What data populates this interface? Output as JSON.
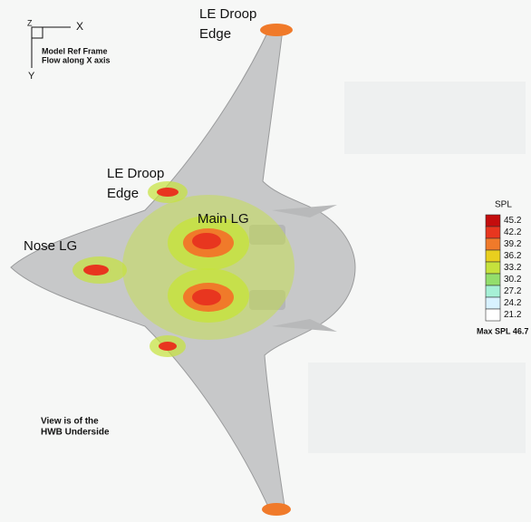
{
  "frame": {
    "x_label": "X",
    "y_label": "Y",
    "z_label": "Z",
    "line1": "Model Ref Frame",
    "line2": "Flow along X axis"
  },
  "annotations": {
    "le_droop_top": [
      "LE Droop",
      "Edge"
    ],
    "le_droop_mid": [
      "LE Droop",
      "Edge"
    ],
    "main_lg": "Main LG",
    "nose_lg": "Nose LG"
  },
  "view_note": [
    "View is of the",
    "HWB Underside"
  ],
  "colorbar": {
    "title": "SPL",
    "levels": [
      {
        "label": "45.2",
        "color": "#c40d0d"
      },
      {
        "label": "42.2",
        "color": "#e8361f"
      },
      {
        "label": "39.2",
        "color": "#f07a2a"
      },
      {
        "label": "36.2",
        "color": "#e9cf1e"
      },
      {
        "label": "33.2",
        "color": "#c6e23c"
      },
      {
        "label": "30.2",
        "color": "#93de6c"
      },
      {
        "label": "27.2",
        "color": "#a6f0d6"
      },
      {
        "label": "24.2",
        "color": "#d8f2ff"
      },
      {
        "label": "21.2",
        "color": "#ffffff"
      }
    ],
    "max_label": "Max SPL 46.7"
  }
}
